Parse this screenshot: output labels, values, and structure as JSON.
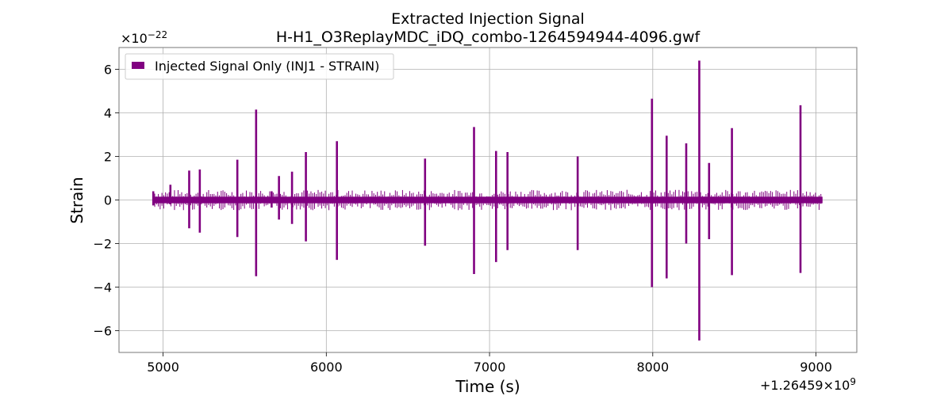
{
  "chart_data": {
    "type": "line",
    "title_line1": "Extracted Injection Signal",
    "title_line2": "H-H1_O3ReplayMDC_iDQ_combo-1264594944-4096.gwf",
    "xlabel": "Time (s)",
    "ylabel": "Strain",
    "x_offset_label": "+1.26459×10",
    "x_offset_exp": "9",
    "y_scale_label": "×10",
    "y_scale_exp": "−22",
    "x_start": 4944,
    "x_end": 9040,
    "xlim": [
      4730,
      9250
    ],
    "ylim": [
      -7.0,
      7.0
    ],
    "x_ticks": [
      5000,
      6000,
      7000,
      8000,
      9000
    ],
    "x_tick_labels": [
      "5000",
      "6000",
      "7000",
      "8000",
      "9000"
    ],
    "y_ticks": [
      -6,
      -4,
      -2,
      0,
      2,
      4,
      6
    ],
    "y_tick_labels": [
      "−6",
      "−4",
      "−2",
      "0",
      "2",
      "4",
      "6"
    ],
    "grid": true,
    "legend_position": "top-left",
    "series": [
      {
        "name": "Injected Signal Only (INJ1 - STRAIN)",
        "color": "#800080",
        "noise_band": 0.15,
        "spikes": [
          {
            "t": 4940,
            "hi": 0.4,
            "lo": -0.25
          },
          {
            "t": 5045,
            "hi": 0.7,
            "lo": -0.2
          },
          {
            "t": 5160,
            "hi": 1.35,
            "lo": -1.3
          },
          {
            "t": 5225,
            "hi": 1.4,
            "lo": -1.5
          },
          {
            "t": 5455,
            "hi": 1.85,
            "lo": -1.7
          },
          {
            "t": 5570,
            "hi": 4.15,
            "lo": -3.5
          },
          {
            "t": 5665,
            "hi": 0.4,
            "lo": -0.35
          },
          {
            "t": 5710,
            "hi": 1.1,
            "lo": -0.9
          },
          {
            "t": 5790,
            "hi": 1.3,
            "lo": -1.1
          },
          {
            "t": 5875,
            "hi": 2.2,
            "lo": -1.9
          },
          {
            "t": 6065,
            "hi": 2.7,
            "lo": -2.75
          },
          {
            "t": 6605,
            "hi": 1.9,
            "lo": -2.1
          },
          {
            "t": 6905,
            "hi": 3.35,
            "lo": -3.4
          },
          {
            "t": 7040,
            "hi": 2.25,
            "lo": -2.85
          },
          {
            "t": 7110,
            "hi": 2.2,
            "lo": -2.3
          },
          {
            "t": 7540,
            "hi": 2.0,
            "lo": -2.3
          },
          {
            "t": 7995,
            "hi": 4.65,
            "lo": -4.0
          },
          {
            "t": 8085,
            "hi": 2.95,
            "lo": -3.6
          },
          {
            "t": 8205,
            "hi": 2.6,
            "lo": -2.0
          },
          {
            "t": 8285,
            "hi": 6.4,
            "lo": -6.45
          },
          {
            "t": 8345,
            "hi": 1.7,
            "lo": -1.8
          },
          {
            "t": 8485,
            "hi": 3.3,
            "lo": -3.45
          },
          {
            "t": 8905,
            "hi": 4.35,
            "lo": -3.35
          }
        ]
      }
    ]
  }
}
